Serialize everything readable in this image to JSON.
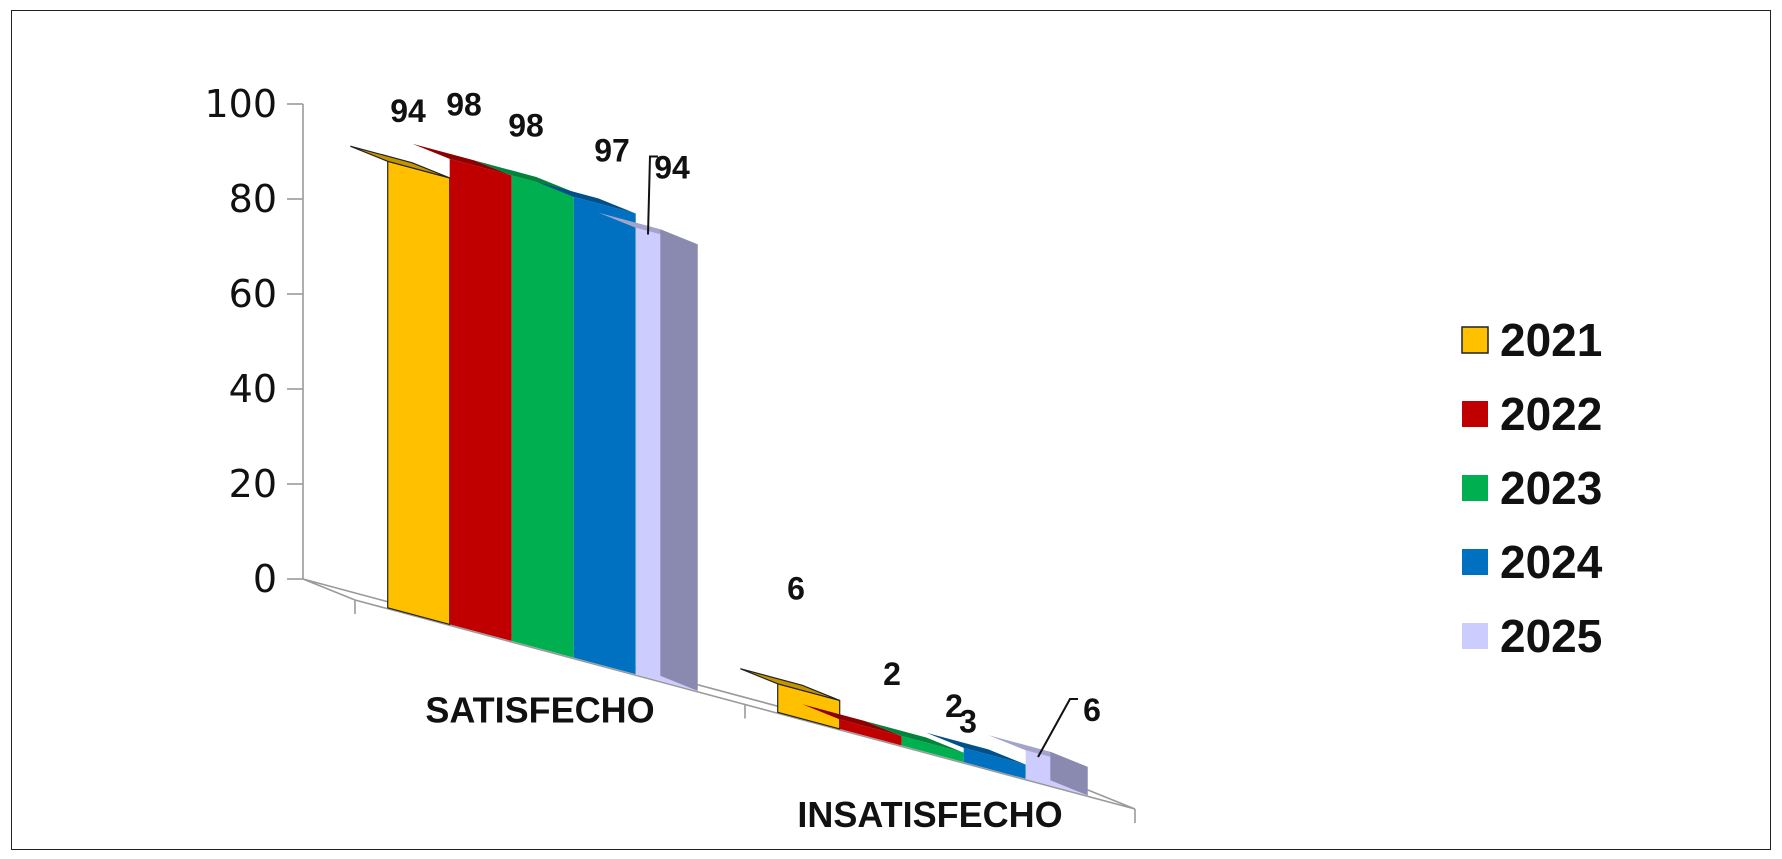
{
  "chart_data": {
    "type": "bar",
    "categories": [
      "SATISFECHO",
      "INSATISFECHO"
    ],
    "series": [
      {
        "name": "2021",
        "values": [
          94,
          6
        ],
        "color": "#FFC000",
        "top_color": "#C49300",
        "side_color": "#B38600"
      },
      {
        "name": "2022",
        "values": [
          98,
          2
        ],
        "color": "#C00000",
        "top_color": "#8E0000",
        "side_color": "#8A0000"
      },
      {
        "name": "2023",
        "values": [
          98,
          2
        ],
        "color": "#00B050",
        "top_color": "#00843C",
        "side_color": "#007A37"
      },
      {
        "name": "2024",
        "values": [
          97,
          3
        ],
        "color": "#0070C0",
        "top_color": "#00508C",
        "side_color": "#004E86"
      },
      {
        "name": "2025",
        "values": [
          94,
          6
        ],
        "color": "#CCCCFF",
        "top_color": "#A3A3CC",
        "side_color": "#8A8AB0"
      }
    ],
    "ylim": [
      0,
      100
    ],
    "yticks": [
      "0",
      "20",
      "40",
      "60",
      "80",
      "100"
    ],
    "legend_position": "right",
    "grid": false,
    "three_d": true,
    "title": "",
    "xlabel": "",
    "ylabel": ""
  }
}
